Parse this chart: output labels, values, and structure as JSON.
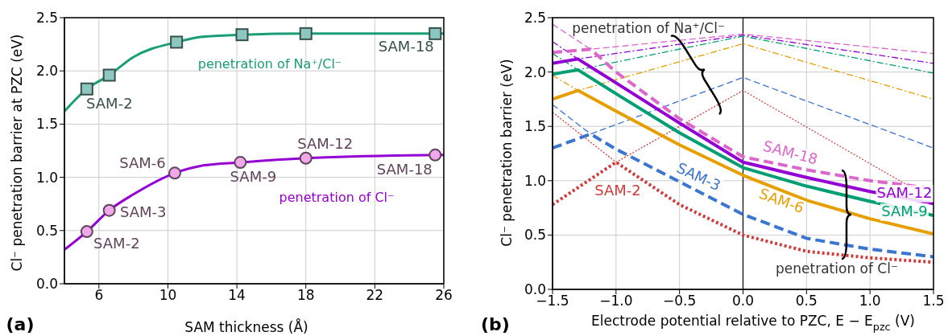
{
  "chart_data": [
    {
      "type": "scatter",
      "xlabel": "SAM thickness (Å)",
      "ylabel": "Cl⁻ penetration barrier at PZC (eV)",
      "xlim": [
        4,
        26
      ],
      "xticks": [
        6,
        10,
        14,
        18,
        22,
        26
      ],
      "ylim": [
        0,
        2.5
      ],
      "yticks": [
        {
          "value": 0,
          "label": "0.0"
        },
        {
          "value": 0.5,
          "label": "0.5"
        },
        {
          "value": 1,
          "label": "1.0"
        },
        {
          "value": 1.5,
          "label": "1.5"
        },
        {
          "value": 2,
          "label": "2.0"
        },
        {
          "value": 2.5,
          "label": "2.5"
        }
      ],
      "grid": true,
      "series": [
        {
          "color": "#8cc8bf",
          "marker": "square",
          "x": [
            5.3,
            6.6,
            10.5,
            14.3,
            18,
            25.5
          ],
          "values": [
            1.83,
            1.96,
            2.27,
            2.34,
            2.35,
            2.35
          ]
        },
        {
          "type": "line",
          "name": "penetration of Na⁺/Cl⁻",
          "color": "#1a9e77",
          "x": [
            4,
            5.3,
            6.6,
            8,
            10.5,
            12,
            14.3,
            18,
            26
          ],
          "values": [
            1.62,
            1.83,
            1.96,
            2.13,
            2.27,
            2.32,
            2.34,
            2.35,
            2.35
          ]
        },
        {
          "color": "#f0a8e8",
          "marker": "circle",
          "x": [
            5.3,
            6.6,
            10.4,
            14.2,
            18,
            25.5
          ],
          "values": [
            0.49,
            0.69,
            1.04,
            1.14,
            1.18,
            1.21
          ]
        },
        {
          "type": "line",
          "name": "penetration of Cl⁻",
          "color": "#9400d3",
          "x": [
            4,
            5.3,
            6.6,
            8,
            10.4,
            12,
            14.2,
            18,
            26
          ],
          "values": [
            0.32,
            0.49,
            0.69,
            0.84,
            1.04,
            1.11,
            1.14,
            1.18,
            1.21
          ]
        }
      ],
      "annotations": [
        {
          "text": "SAM-2",
          "x": 5.3,
          "y": 1.83
        },
        {
          "text": "SAM-18",
          "x": 25.5,
          "y": 2.35
        },
        {
          "text": "SAM-2",
          "x": 5.3,
          "y": 0.49
        },
        {
          "text": "SAM-3",
          "x": 6.6,
          "y": 0.69
        },
        {
          "text": "SAM-6",
          "x": 10.4,
          "y": 1.04
        },
        {
          "text": "SAM-9",
          "x": 14.2,
          "y": 1.14
        },
        {
          "text": "SAM-12",
          "x": 18,
          "y": 1.18
        },
        {
          "text": "SAM-18",
          "x": 25.5,
          "y": 1.21
        },
        "(a)"
      ]
    },
    {
      "type": "line",
      "xlabel": "Electrode potential relative to PZC, E − E$_{pzc}$ (V)",
      "ylabel": "Cl⁻ penetration barrier (eV)",
      "xlim": [
        -1.5,
        1.5
      ],
      "xticks": [
        {
          "value": -1.5,
          "label": "−1.5"
        },
        {
          "value": -1,
          "label": "−1.0"
        },
        {
          "value": -0.5,
          "label": "−0.5"
        },
        {
          "value": 0,
          "label": "0.0"
        },
        {
          "value": 0.5,
          "label": "0.5"
        },
        {
          "value": 1,
          "label": "1.0"
        },
        {
          "value": 1.5,
          "label": "1.5"
        }
      ],
      "ylim": [
        0,
        2.5
      ],
      "yticks": [
        {
          "value": 0,
          "label": "0.0"
        },
        {
          "value": 0.5,
          "label": "0.5"
        },
        {
          "value": 1,
          "label": "1.0"
        },
        {
          "value": 1.5,
          "label": "1.5"
        },
        {
          "value": 2,
          "label": "2.0"
        },
        {
          "value": 2.5,
          "label": "2.5"
        }
      ],
      "grid": true,
      "ref_lines": [
        {
          "axis": "x",
          "value": 0,
          "color": "#000000"
        }
      ],
      "series": [
        {
          "color": "#dd66cc",
          "line_style": "dashed",
          "x": [
            -1.5,
            -1.2,
            0,
            1.5
          ],
          "values": [
            2.44,
            2.21,
            2.35,
            2.17
          ]
        },
        {
          "color": "#9400d3",
          "line_style": "dashdot",
          "x": [
            -1.5,
            -1.3,
            0,
            1.5
          ],
          "values": [
            2.28,
            2.12,
            2.34,
            2.08
          ]
        },
        {
          "color": "#009e73",
          "line_style": "dashdot",
          "x": [
            -1.5,
            -1.3,
            0,
            1.5
          ],
          "values": [
            2.17,
            2.02,
            2.33,
            1.99
          ]
        },
        {
          "color": "#e69f00",
          "line_style": "dashdot",
          "x": [
            -1.5,
            -1.3,
            0,
            1.5
          ],
          "values": [
            1.97,
            1.83,
            2.26,
            1.75
          ]
        },
        {
          "color": "#3a75d0",
          "line_style": "dashed",
          "x": [
            -1.5,
            -1.2,
            0,
            1.5
          ],
          "values": [
            1.7,
            1.43,
            1.95,
            1.3
          ]
        },
        {
          "color": "#d03b3b",
          "line_style": "dotted",
          "x": [
            -1.5,
            -1,
            0,
            1.5
          ],
          "values": [
            1.63,
            1.17,
            1.83,
            0.82
          ]
        },
        {
          "name": "SAM-18",
          "color": "#dd66cc",
          "line_style": "dashed",
          "x": [
            -1.5,
            -1.2,
            -1,
            -0.5,
            0,
            0.5,
            1,
            1.5
          ],
          "values": [
            2.18,
            2.21,
            2,
            1.57,
            1.22,
            1.1,
            1,
            0.93
          ]
        },
        {
          "name": "SAM-12",
          "color": "#9400d3",
          "line_style": "solid",
          "x": [
            -1.5,
            -1.3,
            -1,
            -0.5,
            0,
            0.5,
            1,
            1.5
          ],
          "values": [
            2.08,
            2.12,
            1.9,
            1.53,
            1.17,
            1.03,
            0.9,
            0.79
          ]
        },
        {
          "name": "SAM-9",
          "color": "#009e73",
          "line_style": "solid",
          "x": [
            -1.5,
            -1.3,
            -1,
            -0.5,
            0,
            0.5,
            1,
            1.5
          ],
          "values": [
            1.98,
            2.02,
            1.8,
            1.44,
            1.12,
            0.95,
            0.81,
            0.68
          ]
        },
        {
          "name": "SAM-6",
          "color": "#e69f00",
          "line_style": "solid",
          "x": [
            -1.5,
            -1.3,
            -1,
            -0.5,
            0,
            0.5,
            1,
            1.5
          ],
          "values": [
            1.75,
            1.83,
            1.64,
            1.33,
            1.05,
            0.82,
            0.65,
            0.51
          ]
        },
        {
          "name": "SAM-3",
          "color": "#3a75d0",
          "line_style": "dashed",
          "x": [
            -1.5,
            -1.2,
            -1,
            -0.5,
            0,
            0.5,
            1,
            1.5
          ],
          "values": [
            1.3,
            1.43,
            1.29,
            0.99,
            0.69,
            0.47,
            0.37,
            0.3
          ]
        },
        {
          "name": "SAM-2",
          "color": "#d03b3b",
          "line_style": "dotted",
          "x": [
            -1.5,
            -1,
            -0.5,
            0,
            0.5,
            1,
            1.5
          ],
          "values": [
            0.78,
            1.17,
            0.78,
            0.5,
            0.35,
            0.29,
            0.25
          ]
        }
      ],
      "annotations": [
        "penetration of Na⁺/Cl⁻",
        "penetration of Cl⁻",
        "(b)"
      ]
    }
  ]
}
